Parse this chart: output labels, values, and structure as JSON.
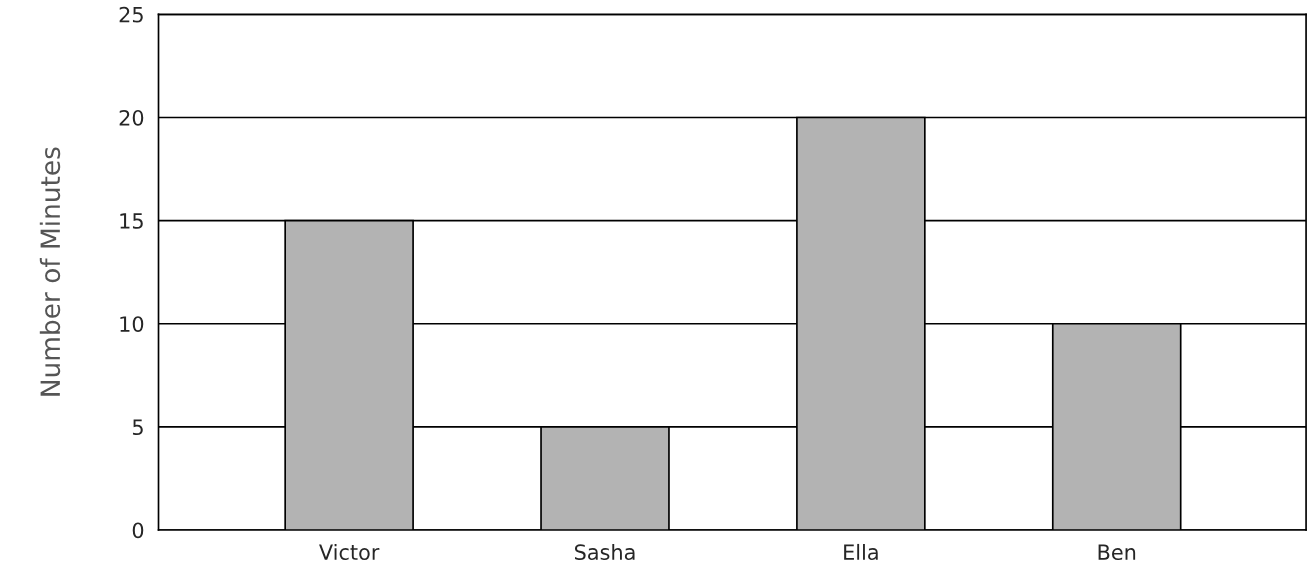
{
  "chart_data": {
    "type": "bar",
    "ylabel": "Number of Minutes",
    "categories": [
      "Victor",
      "Sasha",
      "Ella",
      "Ben"
    ],
    "values": [
      15,
      5,
      20,
      10
    ],
    "color": "#b3b3b3",
    "ylim": [
      0,
      25
    ],
    "yticks": [
      0,
      5,
      10,
      15,
      20,
      25
    ],
    "grid": "y"
  }
}
